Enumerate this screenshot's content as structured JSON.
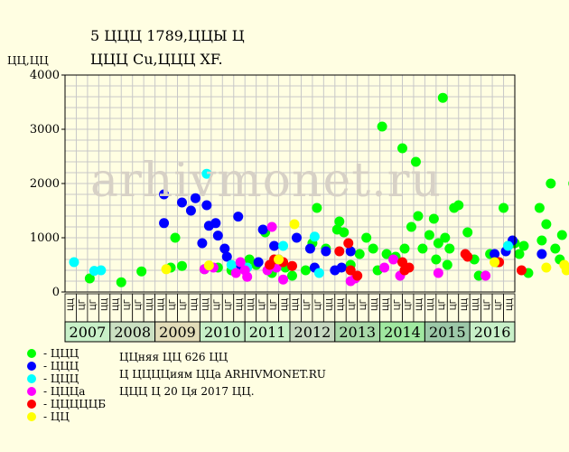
{
  "header": {
    "title_line1": "5 ЦЦЦ 1789,ЦЦЫ Ц",
    "title_line2": "ЦЦЦ Cu,ЦЦЦ XF."
  },
  "watermark": "arhivmonet.ru",
  "legend": [
    {
      "label": "- ЦЦЦ",
      "color": "#00ff00"
    },
    {
      "label": "- ЦЦЦ",
      "color": "#0000ff"
    },
    {
      "label": "- ЦЦЦ",
      "color": "#00ffff"
    },
    {
      "label": "- ЦЦЦа",
      "color": "#ff00ff"
    },
    {
      "label": "- ЦЦЦЦЦБ",
      "color": "#ff0000"
    },
    {
      "label": "- ЦЦ",
      "color": "#ffff00"
    }
  ],
  "notes": {
    "line1": "ЦЦняя ЦЦ 626 ЦЦ",
    "line2": "Ц ЦЦЦЦиям ЦЦа ARHIVMONET.RU",
    "line3": "ЦЦЦ Ц 20 Ця 2017 ЦЦ."
  },
  "chart_data": {
    "type": "scatter",
    "ylabel": "ЦЦ,ЦЦ",
    "ylim": [
      0,
      4000
    ],
    "yticks": [
      0,
      1000,
      2000,
      3000,
      4000
    ],
    "grid": true,
    "legend_position": "bottom-left",
    "quarter_labels": [
      "ЦЦ",
      "ЦГ",
      "ЦГ",
      "ЦЦ"
    ],
    "years": [
      "2007",
      "2008",
      "2009",
      "2010",
      "2011",
      "2012",
      "2013",
      "2014",
      "2015",
      "2016"
    ],
    "year_colors": [
      "#c8f0c8",
      "#cbe0c2",
      "#e2dcb8",
      "#c8f0c8",
      "#c8f0c8",
      "#c6d8c0",
      "#a8d8a8",
      "#a0e8a0",
      "#9cc8a8",
      "#c8f0c8"
    ],
    "series": [
      {
        "name": "ЦЦЦ",
        "color": "#00ff00",
        "points": [
          [
            0.55,
            250
          ],
          [
            1.25,
            180
          ],
          [
            1.7,
            380
          ],
          [
            2.35,
            450
          ],
          [
            2.45,
            1000
          ],
          [
            2.6,
            480
          ],
          [
            3.1,
            420
          ],
          [
            3.4,
            450
          ],
          [
            3.7,
            400
          ],
          [
            4.1,
            600
          ],
          [
            4.25,
            500
          ],
          [
            4.45,
            1100
          ],
          [
            4.6,
            350
          ],
          [
            4.9,
            450
          ],
          [
            5.05,
            300
          ],
          [
            5.35,
            400
          ],
          [
            5.5,
            900
          ],
          [
            5.6,
            1550
          ],
          [
            5.8,
            800
          ],
          [
            6.05,
            1150
          ],
          [
            6.1,
            1300
          ],
          [
            6.2,
            1100
          ],
          [
            6.35,
            500
          ],
          [
            6.55,
            700
          ],
          [
            6.7,
            1000
          ],
          [
            6.85,
            800
          ],
          [
            6.95,
            400
          ],
          [
            7.05,
            3050
          ],
          [
            7.15,
            700
          ],
          [
            7.35,
            650
          ],
          [
            7.5,
            2650
          ],
          [
            7.55,
            800
          ],
          [
            7.7,
            1200
          ],
          [
            7.8,
            2400
          ],
          [
            7.85,
            1400
          ],
          [
            7.95,
            800
          ],
          [
            8.1,
            1050
          ],
          [
            8.2,
            1350
          ],
          [
            8.25,
            600
          ],
          [
            8.3,
            900
          ],
          [
            8.4,
            3580
          ],
          [
            8.45,
            1000
          ],
          [
            8.5,
            500
          ],
          [
            8.55,
            800
          ],
          [
            8.65,
            1550
          ],
          [
            8.75,
            1600
          ],
          [
            8.95,
            1100
          ],
          [
            9.1,
            600
          ],
          [
            9.2,
            300
          ],
          [
            9.45,
            700
          ],
          [
            9.6,
            550
          ],
          [
            9.75,
            1550
          ],
          [
            9.85,
            850
          ],
          [
            10.0,
            900
          ],
          [
            10.1,
            700
          ],
          [
            10.2,
            850
          ],
          [
            10.3,
            350
          ],
          [
            10.55,
            1550
          ],
          [
            10.6,
            950
          ],
          [
            10.7,
            1250
          ],
          [
            10.8,
            2000
          ],
          [
            10.9,
            800
          ],
          [
            11.05,
            1050
          ],
          [
            11.15,
            450
          ],
          [
            11.3,
            2000
          ],
          [
            11.45,
            1650
          ],
          [
            11.55,
            1800
          ],
          [
            11.7,
            1600
          ],
          [
            11.75,
            900
          ],
          [
            11.5,
            1300
          ],
          [
            11.0,
            600
          ]
        ]
      },
      {
        "name": "ЦЦЦ",
        "color": "#0000ff",
        "points": [
          [
            2.2,
            1270
          ],
          [
            2.2,
            1800
          ],
          [
            2.6,
            1650
          ],
          [
            2.8,
            1500
          ],
          [
            2.9,
            1730
          ],
          [
            3.05,
            900
          ],
          [
            3.15,
            1600
          ],
          [
            3.2,
            1220
          ],
          [
            3.35,
            1270
          ],
          [
            3.4,
            1040
          ],
          [
            3.55,
            800
          ],
          [
            3.6,
            650
          ],
          [
            3.85,
            1390
          ],
          [
            3.9,
            500
          ],
          [
            4.3,
            550
          ],
          [
            4.4,
            1150
          ],
          [
            4.65,
            850
          ],
          [
            4.75,
            600
          ],
          [
            5.15,
            1000
          ],
          [
            5.45,
            800
          ],
          [
            5.55,
            450
          ],
          [
            5.8,
            750
          ],
          [
            6.0,
            400
          ],
          [
            6.15,
            450
          ],
          [
            6.35,
            750
          ],
          [
            9.55,
            700
          ],
          [
            9.8,
            750
          ],
          [
            9.95,
            950
          ],
          [
            10.6,
            700
          ],
          [
            11.4,
            550
          ],
          [
            12.6,
            500
          ]
        ]
      },
      {
        "name": "ЦЦЦ",
        "color": "#00ffff",
        "points": [
          [
            0.2,
            550
          ],
          [
            0.65,
            390
          ],
          [
            0.8,
            400
          ],
          [
            3.15,
            2180
          ],
          [
            3.7,
            500
          ],
          [
            4.05,
            450
          ],
          [
            4.85,
            850
          ],
          [
            5.55,
            1020
          ],
          [
            5.65,
            350
          ],
          [
            9.85,
            850
          ]
        ]
      },
      {
        "name": "ЦЦЦа",
        "color": "#ff00ff",
        "points": [
          [
            3.1,
            420
          ],
          [
            3.3,
            450
          ],
          [
            3.8,
            350
          ],
          [
            3.9,
            550
          ],
          [
            4.0,
            400
          ],
          [
            4.05,
            280
          ],
          [
            4.5,
            400
          ],
          [
            4.6,
            1200
          ],
          [
            4.7,
            450
          ],
          [
            4.85,
            230
          ],
          [
            6.35,
            200
          ],
          [
            6.45,
            250
          ],
          [
            7.1,
            450
          ],
          [
            7.3,
            600
          ],
          [
            7.45,
            300
          ],
          [
            8.3,
            350
          ],
          [
            9.35,
            300
          ],
          [
            12.25,
            350
          ],
          [
            13.0,
            200
          ],
          [
            13.05,
            400
          ],
          [
            13.25,
            330
          ],
          [
            13.5,
            350
          ],
          [
            14.2,
            400
          ],
          [
            14.25,
            500
          ],
          [
            14.75,
            330
          ],
          [
            14.8,
            350
          ]
        ]
      },
      {
        "name": "ЦЦЦЦЦБ",
        "color": "#ff0000",
        "points": [
          [
            4.55,
            500
          ],
          [
            4.65,
            600
          ],
          [
            4.85,
            550
          ],
          [
            5.05,
            480
          ],
          [
            6.1,
            750
          ],
          [
            6.3,
            900
          ],
          [
            6.35,
            400
          ],
          [
            6.5,
            300
          ],
          [
            7.5,
            550
          ],
          [
            7.55,
            400
          ],
          [
            7.65,
            450
          ],
          [
            8.9,
            700
          ],
          [
            8.95,
            650
          ],
          [
            9.65,
            550
          ],
          [
            10.15,
            400
          ],
          [
            11.9,
            850
          ],
          [
            12.1,
            700
          ],
          [
            12.35,
            880
          ],
          [
            12.45,
            650
          ],
          [
            12.8,
            700
          ],
          [
            13.4,
            2400
          ],
          [
            13.55,
            1000
          ],
          [
            13.65,
            1100
          ],
          [
            13.7,
            1280
          ],
          [
            13.75,
            850
          ],
          [
            14.1,
            1220
          ],
          [
            14.3,
            970
          ]
        ]
      },
      {
        "name": "ЦЦ",
        "color": "#ffff00",
        "points": [
          [
            2.25,
            420
          ],
          [
            3.2,
            490
          ],
          [
            4.75,
            600
          ],
          [
            5.1,
            1250
          ],
          [
            9.55,
            550
          ],
          [
            10.7,
            450
          ],
          [
            11.1,
            500
          ],
          [
            11.15,
            400
          ],
          [
            12.7,
            400
          ],
          [
            13.3,
            650
          ]
        ]
      }
    ]
  }
}
